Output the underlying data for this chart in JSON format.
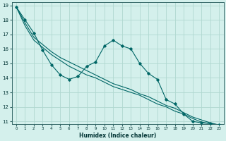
{
  "xlabel": "Humidex (Indice chaleur)",
  "bg_color": "#d4f0ec",
  "grid_color": "#b0d8d0",
  "line_color": "#006666",
  "xlim": [
    -0.5,
    23.5
  ],
  "ylim": [
    10.8,
    19.2
  ],
  "xticks": [
    0,
    1,
    2,
    3,
    4,
    5,
    6,
    7,
    8,
    9,
    10,
    11,
    12,
    13,
    14,
    15,
    16,
    17,
    18,
    19,
    20,
    21,
    22,
    23
  ],
  "yticks": [
    11,
    12,
    13,
    14,
    15,
    16,
    17,
    18,
    19
  ],
  "line1_x": [
    0,
    1,
    2,
    3,
    4,
    5,
    6,
    7,
    8,
    9,
    10,
    11,
    12,
    13,
    14,
    15,
    16,
    17,
    18,
    19,
    20,
    21,
    22,
    23
  ],
  "line1_y": [
    18.9,
    18.0,
    17.1,
    15.9,
    14.9,
    14.2,
    13.9,
    14.1,
    14.8,
    15.1,
    16.2,
    16.6,
    16.2,
    16.0,
    15.0,
    14.3,
    13.9,
    12.5,
    12.2,
    11.5,
    11.0,
    10.9,
    10.85,
    10.75
  ],
  "line2_x": [
    0,
    1,
    2,
    3,
    4,
    5,
    6,
    7,
    8,
    9,
    10,
    11,
    12,
    13,
    14,
    15,
    16,
    17,
    18,
    19,
    20,
    21,
    22,
    23
  ],
  "line2_y": [
    18.9,
    17.8,
    16.8,
    16.3,
    15.8,
    15.4,
    15.1,
    14.8,
    14.5,
    14.2,
    13.9,
    13.6,
    13.4,
    13.2,
    12.9,
    12.7,
    12.4,
    12.1,
    11.9,
    11.6,
    11.3,
    11.1,
    10.9,
    10.75
  ],
  "line3_x": [
    0,
    1,
    2,
    3,
    4,
    5,
    6,
    7,
    8,
    9,
    10,
    11,
    12,
    13,
    14,
    15,
    16,
    17,
    18,
    19,
    20,
    21,
    22,
    23
  ],
  "line3_y": [
    18.9,
    17.6,
    16.6,
    16.1,
    15.6,
    15.2,
    14.8,
    14.5,
    14.2,
    14.0,
    13.7,
    13.4,
    13.2,
    13.0,
    12.8,
    12.5,
    12.2,
    12.0,
    11.7,
    11.5,
    11.2,
    10.95,
    10.85,
    10.75
  ]
}
